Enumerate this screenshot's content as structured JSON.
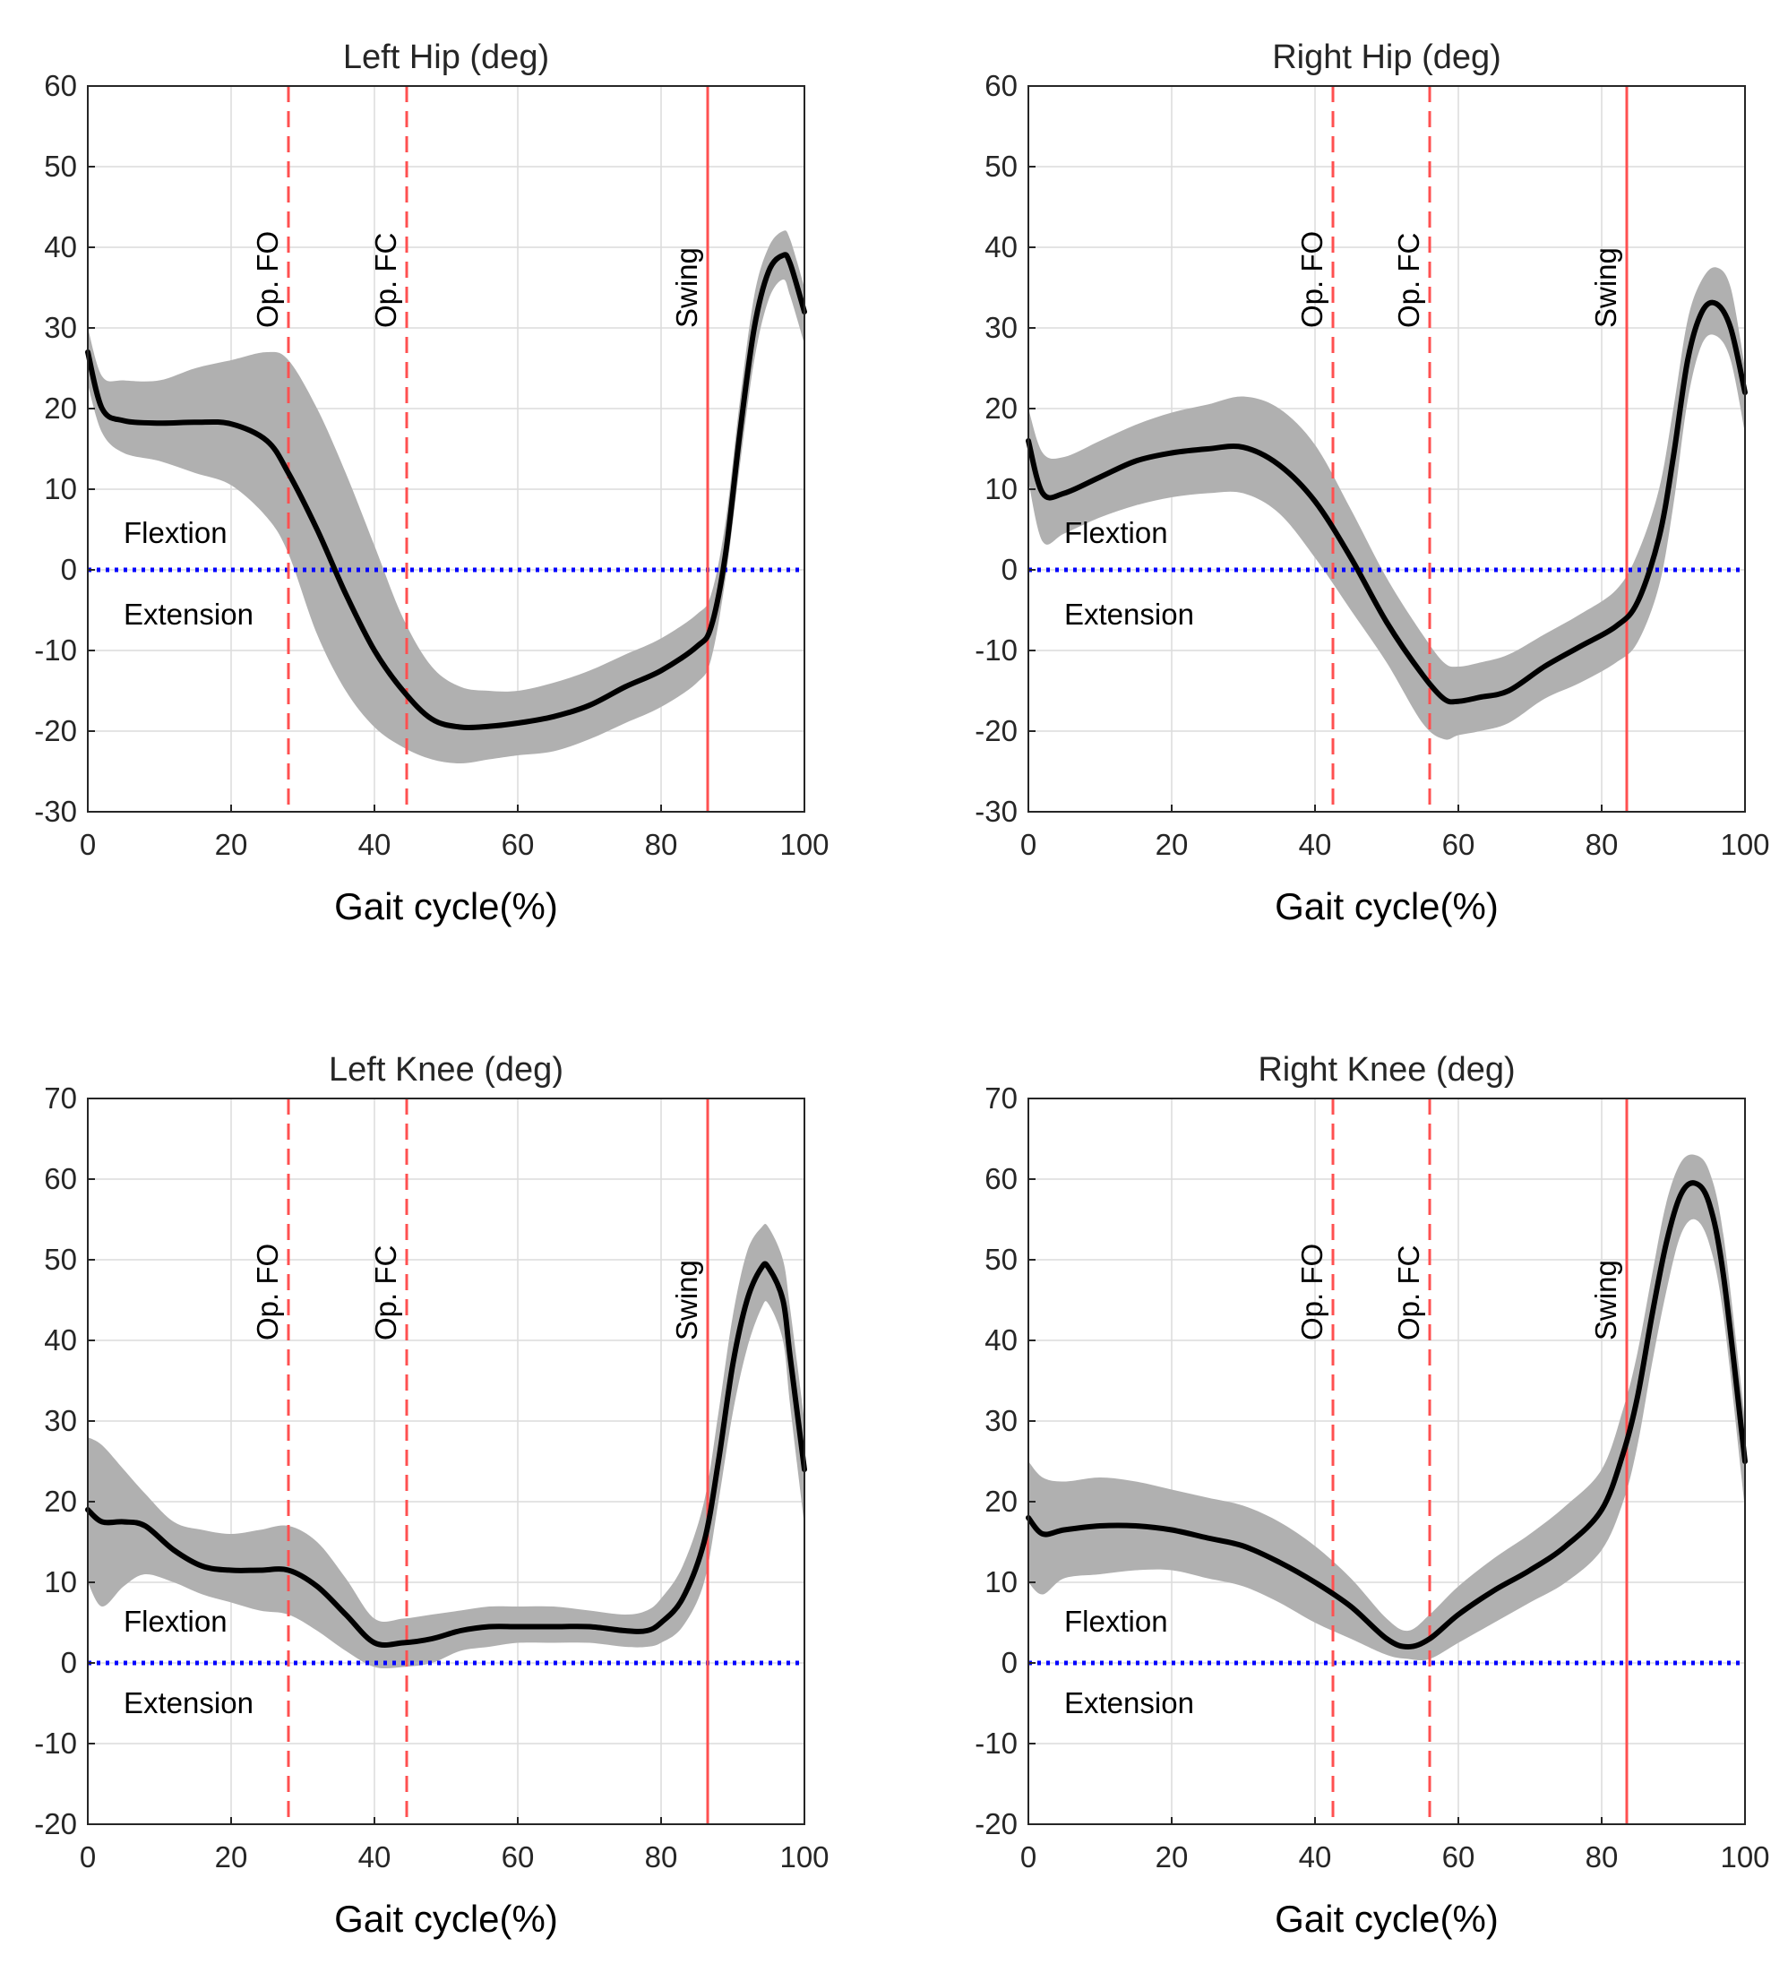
{
  "colors": {
    "mean_line": "#000000",
    "sd_band": "#b0b0b0",
    "zero_line": "#0000ff",
    "event_line": "#ff5050",
    "grid": "#dcdcdc",
    "axis": "#262626"
  },
  "chart_data": [
    {
      "type": "line",
      "title": "Left Hip (deg)",
      "xlabel": "Gait cycle(%)",
      "ylabel": "",
      "xlim": [
        0,
        100
      ],
      "ylim": [
        -30,
        60
      ],
      "xticks": [
        0,
        20,
        40,
        60,
        80,
        100
      ],
      "yticks": [
        -30,
        -20,
        -10,
        0,
        10,
        20,
        30,
        40,
        50,
        60
      ],
      "grid": true,
      "region_labels": {
        "above_zero": "Flextion",
        "below_zero": "Extension"
      },
      "events": [
        {
          "label": "Op. FO",
          "x": 28,
          "style": "dashed"
        },
        {
          "label": "Op. FC",
          "x": 44.5,
          "style": "dashed"
        },
        {
          "label": "Swing",
          "x": 86.5,
          "style": "solid"
        }
      ],
      "x": [
        0,
        2,
        5,
        10,
        15,
        20,
        25,
        28,
        32,
        36,
        40,
        44,
        48,
        52,
        56,
        60,
        65,
        70,
        75,
        80,
        85,
        87,
        89,
        91,
        93,
        95,
        97,
        98,
        100
      ],
      "mean": [
        27,
        20,
        18.5,
        18.2,
        18.3,
        18.1,
        16,
        12,
        5,
        -3,
        -10,
        -15,
        -18.5,
        -19.5,
        -19.4,
        -19,
        -18.2,
        -16.8,
        -14.5,
        -12.5,
        -9.5,
        -7,
        2,
        17,
        30,
        37,
        39,
        38,
        32
      ],
      "upper": [
        30,
        24,
        23.5,
        23.5,
        25,
        26,
        27,
        26,
        20,
        12,
        3,
        -6,
        -12,
        -14.5,
        -15,
        -15,
        -14,
        -12.5,
        -10.5,
        -8.5,
        -5.5,
        -3,
        6,
        21,
        34,
        40,
        42,
        41,
        35
      ],
      "lower": [
        23,
        17,
        14.5,
        13.5,
        12,
        10.5,
        6.5,
        2,
        -8,
        -15,
        -19.5,
        -22,
        -23.5,
        -24,
        -23.5,
        -23,
        -22.5,
        -21,
        -19,
        -17,
        -14,
        -11,
        -1,
        13,
        26,
        33.5,
        36,
        34,
        28
      ]
    },
    {
      "type": "line",
      "title": "Right Hip (deg)",
      "xlabel": "Gait cycle(%)",
      "ylabel": "",
      "xlim": [
        0,
        100
      ],
      "ylim": [
        -30,
        60
      ],
      "xticks": [
        0,
        20,
        40,
        60,
        80,
        100
      ],
      "yticks": [
        -30,
        -20,
        -10,
        0,
        10,
        20,
        30,
        40,
        50,
        60
      ],
      "grid": true,
      "region_labels": {
        "above_zero": "Flextion",
        "below_zero": "Extension"
      },
      "events": [
        {
          "label": "Op. FO",
          "x": 42.5,
          "style": "dashed"
        },
        {
          "label": "Op. FC",
          "x": 56,
          "style": "dashed"
        },
        {
          "label": "Swing",
          "x": 83.5,
          "style": "solid"
        }
      ],
      "x": [
        0,
        2,
        5,
        10,
        15,
        20,
        25,
        30,
        35,
        40,
        45,
        50,
        55,
        58,
        60,
        63,
        67,
        72,
        77,
        82,
        85,
        88,
        90,
        92,
        94,
        96,
        98,
        100
      ],
      "mean": [
        16,
        9.5,
        9.5,
        11.5,
        13.5,
        14.5,
        15,
        15.2,
        13,
        8.5,
        1.5,
        -6.5,
        -13,
        -16,
        -16.3,
        -15.8,
        -15,
        -12,
        -9.5,
        -7,
        -4,
        4,
        14,
        26,
        32,
        33,
        30,
        22
      ],
      "upper": [
        20,
        14.5,
        14,
        16,
        18,
        19.5,
        20.5,
        21.5,
        20,
        15.5,
        7.5,
        -1,
        -8,
        -11.5,
        -12,
        -11.5,
        -10.5,
        -8,
        -5.5,
        -2.5,
        2,
        10,
        20,
        31,
        36,
        37.5,
        35,
        25
      ],
      "lower": [
        11,
        3.5,
        4.5,
        6.5,
        8,
        9,
        9.5,
        9.5,
        7,
        1.5,
        -5,
        -11.5,
        -19,
        -21,
        -20.5,
        -20,
        -19,
        -16,
        -14,
        -11.5,
        -9,
        -2,
        8,
        21,
        28,
        29,
        26,
        17
      ]
    },
    {
      "type": "line",
      "title": "Left Knee (deg)",
      "xlabel": "Gait cycle(%)",
      "ylabel": "",
      "xlim": [
        0,
        100
      ],
      "ylim": [
        -20,
        70
      ],
      "xticks": [
        0,
        20,
        40,
        60,
        80,
        100
      ],
      "yticks": [
        -20,
        -10,
        0,
        10,
        20,
        30,
        40,
        50,
        60,
        70
      ],
      "grid": true,
      "region_labels": {
        "above_zero": "Flextion",
        "below_zero": "Extension"
      },
      "events": [
        {
          "label": "Op. FO",
          "x": 28,
          "style": "dashed"
        },
        {
          "label": "Op. FC",
          "x": 44.5,
          "style": "dashed"
        },
        {
          "label": "Swing",
          "x": 86.5,
          "style": "solid"
        }
      ],
      "x": [
        0,
        2,
        5,
        8,
        12,
        16,
        20,
        24,
        28,
        32,
        36,
        40,
        44,
        48,
        52,
        56,
        60,
        65,
        70,
        75,
        78,
        80,
        83,
        86,
        88,
        90,
        92,
        94,
        95,
        97,
        98,
        100
      ],
      "mean": [
        19,
        17.5,
        17.5,
        17,
        14,
        12,
        11.5,
        11.5,
        11.5,
        9.5,
        6,
        2.5,
        2.5,
        3,
        4,
        4.5,
        4.5,
        4.5,
        4.5,
        4,
        4,
        5,
        8,
        15,
        25,
        37,
        45,
        49,
        49,
        45,
        38,
        24
      ],
      "upper": [
        28,
        27,
        24,
        21,
        17.5,
        16.5,
        16,
        16.5,
        17,
        15,
        10.5,
        5.5,
        5.5,
        6,
        6.5,
        7,
        7,
        7,
        6.5,
        6,
        6.5,
        8,
        12,
        20,
        31,
        43,
        51,
        54,
        54,
        50,
        44,
        30
      ],
      "lower": [
        10,
        7,
        9.5,
        11,
        10,
        8.5,
        7.5,
        6.5,
        6,
        4,
        1.5,
        -0.5,
        -0.5,
        0,
        1.5,
        2,
        2.5,
        2.5,
        2.5,
        2,
        2,
        2.5,
        4.5,
        10,
        20,
        31,
        39,
        44,
        44.5,
        40,
        32,
        17
      ]
    },
    {
      "type": "line",
      "title": "Right Knee (deg)",
      "xlabel": "Gait cycle(%)",
      "ylabel": "",
      "xlim": [
        0,
        100
      ],
      "ylim": [
        -20,
        70
      ],
      "xticks": [
        0,
        20,
        40,
        60,
        80,
        100
      ],
      "yticks": [
        -20,
        -10,
        0,
        10,
        20,
        30,
        40,
        50,
        60,
        70
      ],
      "grid": true,
      "region_labels": {
        "above_zero": "Flextion",
        "below_zero": "Extension"
      },
      "events": [
        {
          "label": "Op. FO",
          "x": 42.5,
          "style": "dashed"
        },
        {
          "label": "Op. FC",
          "x": 56,
          "style": "dashed"
        },
        {
          "label": "Swing",
          "x": 83.5,
          "style": "solid"
        }
      ],
      "x": [
        0,
        2,
        5,
        10,
        15,
        20,
        25,
        30,
        35,
        40,
        45,
        50,
        53,
        56,
        60,
        65,
        70,
        75,
        80,
        83,
        85,
        87,
        89,
        91,
        93,
        95,
        97,
        100
      ],
      "mean": [
        18,
        16,
        16.5,
        17,
        17,
        16.5,
        15.5,
        14.5,
        12.5,
        10,
        7,
        3,
        2,
        3,
        6,
        9,
        11.5,
        14.5,
        19,
        26,
        33,
        43,
        52,
        58,
        59.5,
        57,
        48,
        25
      ],
      "upper": [
        25,
        23,
        22.5,
        23,
        22.5,
        21.5,
        20.5,
        19.5,
        17.5,
        14.5,
        10.5,
        5.5,
        4,
        6,
        9.5,
        13,
        16,
        19.5,
        24,
        31.5,
        38.5,
        48,
        57,
        62,
        63,
        61,
        53,
        30
      ],
      "lower": [
        10,
        8.5,
        10.5,
        11,
        11.5,
        11.5,
        10.5,
        9.5,
        7.5,
        5,
        3,
        1,
        0.5,
        0.5,
        2.5,
        5,
        7.5,
        10,
        14,
        20,
        27,
        37,
        46,
        53,
        55,
        52,
        43,
        19
      ]
    }
  ]
}
